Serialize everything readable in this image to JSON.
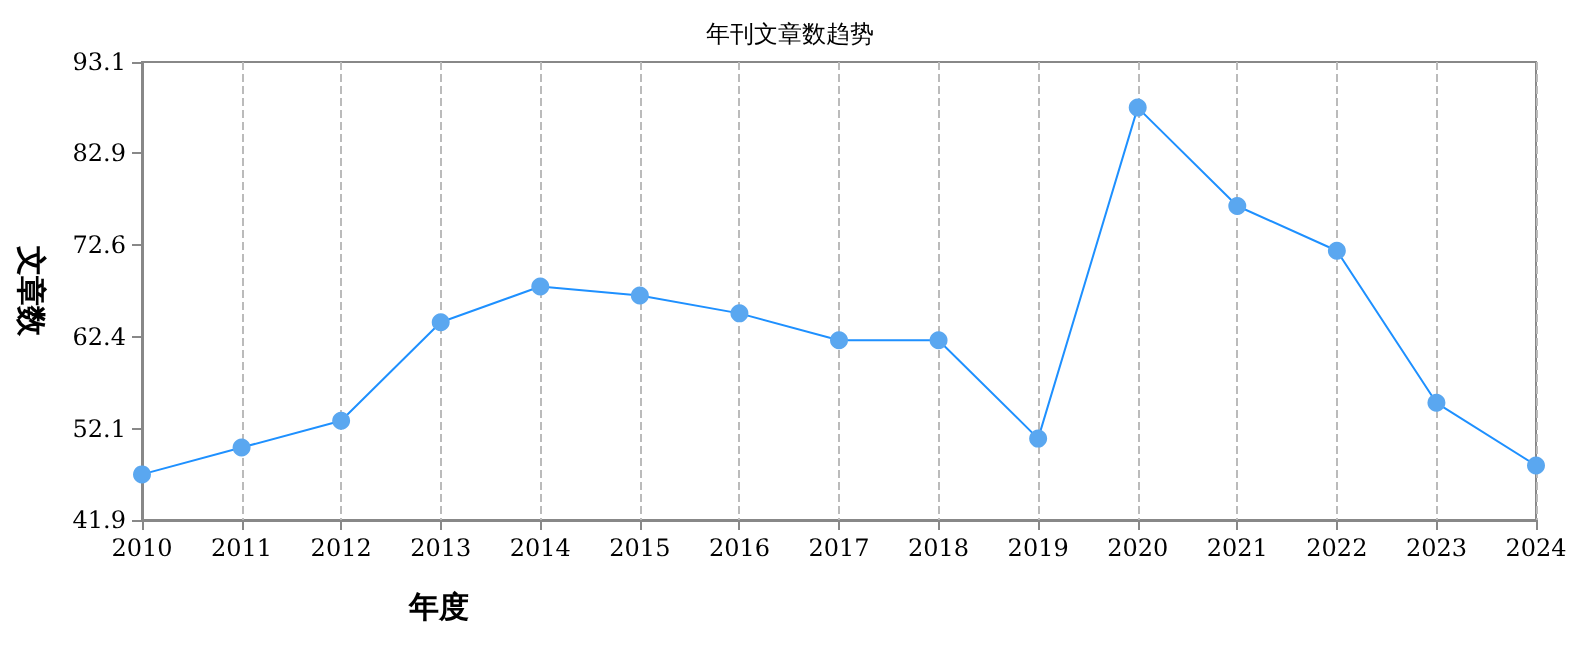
{
  "chart_data": {
    "type": "line",
    "title": "年刊文章数趋势",
    "xlabel": "年度",
    "ylabel": "文章数",
    "categories": [
      "2010",
      "2011",
      "2012",
      "2013",
      "2014",
      "2015",
      "2016",
      "2017",
      "2018",
      "2019",
      "2020",
      "2021",
      "2022",
      "2023",
      "2024"
    ],
    "series": [
      {
        "color": "#1e90ff",
        "values": [
          47,
          50,
          53,
          64,
          68,
          67,
          65,
          62,
          62,
          51,
          88,
          77,
          72,
          55,
          48
        ]
      }
    ],
    "ylim": [
      41.9,
      93.1
    ],
    "yticks": [
      41.9,
      52.1,
      62.4,
      72.6,
      82.9,
      93.1
    ],
    "grid": "x",
    "marker": "circle",
    "line_style": "solid"
  }
}
